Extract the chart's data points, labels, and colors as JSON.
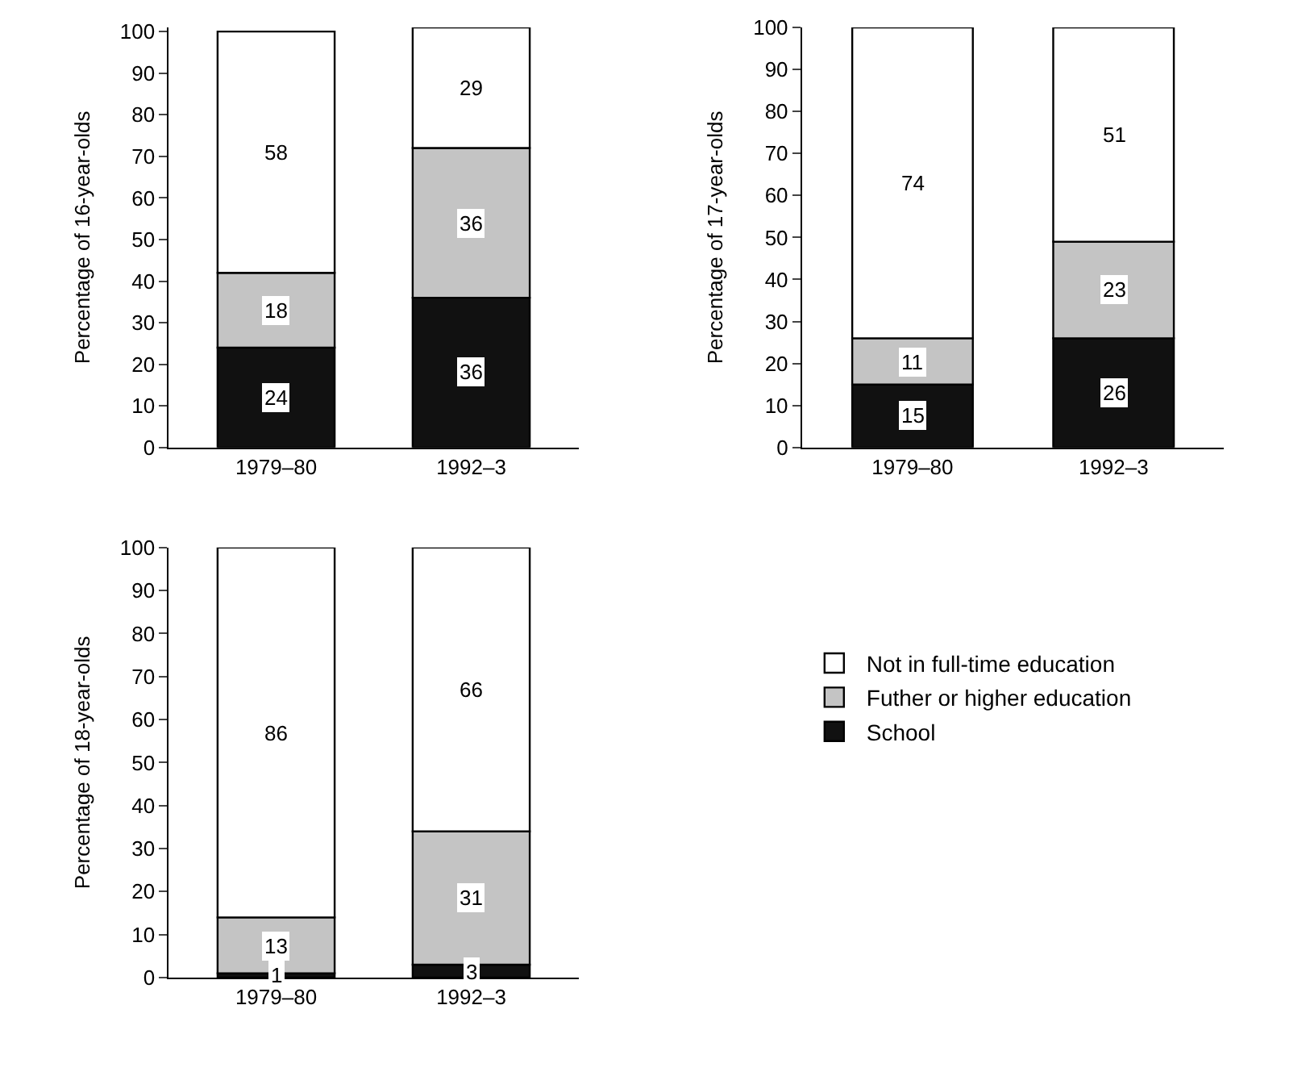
{
  "chart_data": [
    {
      "type": "bar",
      "stacked": true,
      "ylabel": "Percentage of 16-year-olds",
      "categories": [
        "1979–80",
        "1992–3"
      ],
      "ylim": [
        0,
        101
      ],
      "yticks": [
        0,
        10,
        20,
        30,
        40,
        50,
        60,
        70,
        80,
        90,
        100
      ],
      "data_labels": true,
      "legend": false,
      "series": [
        {
          "color": "#111111",
          "values": [
            24,
            36
          ]
        },
        {
          "color": "#c4c4c4",
          "values": [
            18,
            36
          ]
        },
        {
          "color": "#ffffff",
          "values": [
            58,
            29
          ]
        }
      ]
    },
    {
      "type": "bar",
      "stacked": true,
      "ylabel": "Percentage of 17-year-olds",
      "categories": [
        "1979–80",
        "1992–3"
      ],
      "ylim": [
        0,
        100
      ],
      "yticks": [
        0,
        10,
        20,
        30,
        40,
        50,
        60,
        70,
        80,
        90,
        100
      ],
      "data_labels": true,
      "legend": false,
      "series": [
        {
          "color": "#111111",
          "values": [
            15,
            26
          ]
        },
        {
          "color": "#c4c4c4",
          "values": [
            11,
            23
          ]
        },
        {
          "color": "#ffffff",
          "values": [
            74,
            51
          ]
        }
      ]
    },
    {
      "type": "bar",
      "stacked": true,
      "ylabel": "Percentage of 18-year-olds",
      "categories": [
        "1979–80",
        "1992–3"
      ],
      "ylim": [
        0,
        100
      ],
      "yticks": [
        0,
        10,
        20,
        30,
        40,
        50,
        60,
        70,
        80,
        90,
        100
      ],
      "data_labels": true,
      "legend": "right",
      "series": [
        {
          "name": "School",
          "color": "#111111",
          "values": [
            1,
            3
          ]
        },
        {
          "name": "Futher or higher education",
          "color": "#c4c4c4",
          "values": [
            13,
            31
          ]
        },
        {
          "name": "Not in full-time education",
          "color": "#ffffff",
          "values": [
            86,
            66
          ]
        }
      ]
    }
  ]
}
